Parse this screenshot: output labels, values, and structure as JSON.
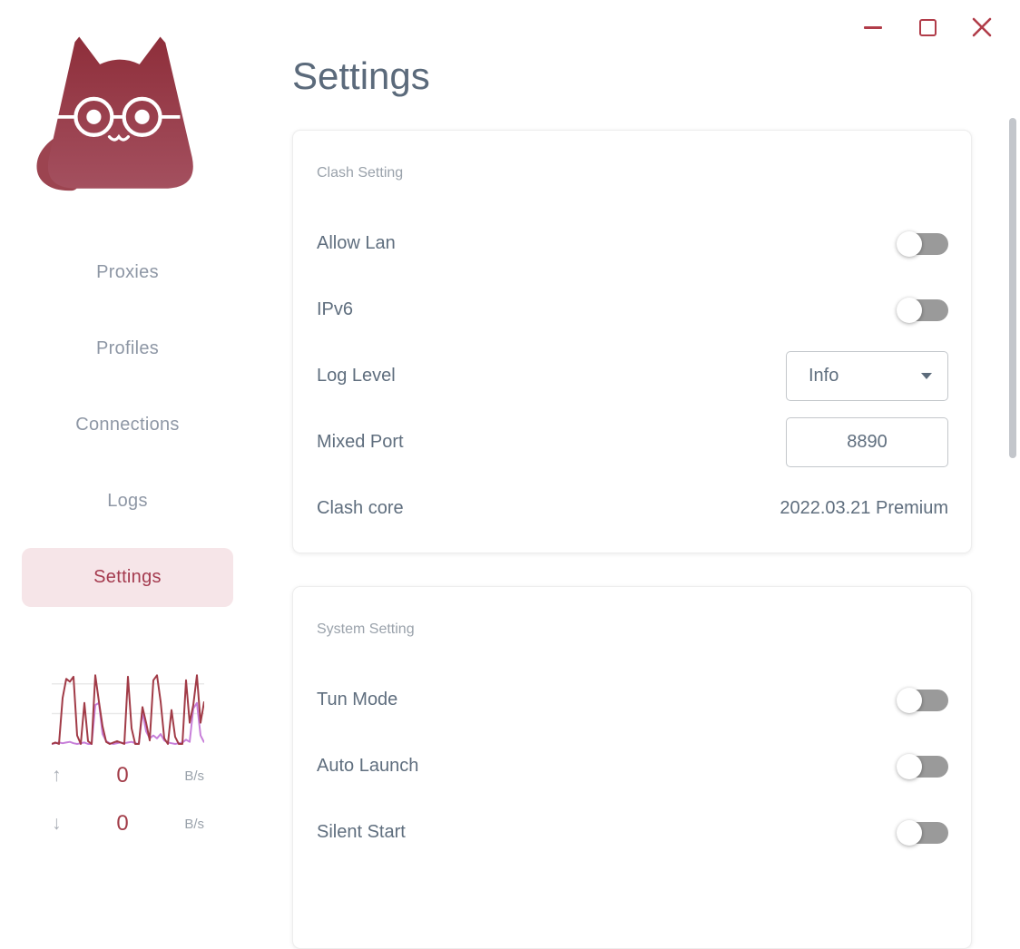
{
  "window": {
    "controls": {
      "minimize": "minimize",
      "maximize": "maximize",
      "close": "close"
    }
  },
  "sidebar": {
    "logo": "cat-with-glasses",
    "nav": [
      {
        "label": "Proxies",
        "active": false
      },
      {
        "label": "Profiles",
        "active": false
      },
      {
        "label": "Connections",
        "active": false
      },
      {
        "label": "Logs",
        "active": false
      },
      {
        "label": "Settings",
        "active": true
      }
    ],
    "traffic": {
      "upload": {
        "icon": "arrow-up-icon",
        "value": "0",
        "unit": "B/s"
      },
      "download": {
        "icon": "arrow-down-icon",
        "value": "0",
        "unit": "B/s"
      },
      "chart": {
        "type": "line",
        "ylim": [
          0,
          100
        ],
        "gridlines": [
          43,
          85
        ],
        "grid_color": "#e9e9e9",
        "series": [
          {
            "name": "upload",
            "color": "#a13b47",
            "values": [
              0,
              2,
              0,
              65,
              92,
              88,
              95,
              12,
              0,
              58,
              4,
              0,
              97,
              60,
              25,
              3,
              0,
              2,
              4,
              2,
              0,
              95,
              22,
              0,
              0,
              52,
              30,
              5,
              90,
              97,
              60,
              8,
              0,
              48,
              10,
              0,
              0,
              90,
              30,
              55,
              97,
              30,
              60
            ]
          },
          {
            "name": "download",
            "color": "#c77fd9",
            "values": [
              0,
              1,
              2,
              1,
              2,
              3,
              1,
              0,
              1,
              2,
              0,
              0,
              55,
              58,
              14,
              4,
              1,
              0,
              1,
              2,
              1,
              2,
              3,
              1,
              0,
              45,
              18,
              8,
              12,
              8,
              14,
              5,
              2,
              1,
              0,
              1,
              2,
              6,
              3,
              50,
              58,
              12,
              2
            ]
          }
        ]
      }
    }
  },
  "main": {
    "title": "Settings",
    "cards": [
      {
        "section": "Clash Setting",
        "rows": [
          {
            "label": "Allow Lan",
            "type": "toggle",
            "value": "off"
          },
          {
            "label": "IPv6",
            "type": "toggle",
            "value": "off"
          },
          {
            "label": "Log Level",
            "type": "select",
            "value": "Info"
          },
          {
            "label": "Mixed Port",
            "type": "input",
            "value": "8890"
          },
          {
            "label": "Clash core",
            "type": "text",
            "value": "2022.03.21 Premium"
          }
        ]
      },
      {
        "section": "System Setting",
        "rows": [
          {
            "label": "Tun Mode",
            "type": "toggle",
            "value": "off"
          },
          {
            "label": "Auto Launch",
            "type": "toggle",
            "value": "off"
          },
          {
            "label": "Silent Start",
            "type": "toggle",
            "value": "off"
          }
        ]
      }
    ]
  },
  "colors": {
    "accent": "#a13b47",
    "active_nav_bg": "#f6e5e8",
    "active_nav_text": "#a43a4e",
    "text_primary": "#5f6e7e",
    "text_muted": "#9aa2ab",
    "nav_text": "#8e97a5",
    "toggle_track_off": "#9a9a9a",
    "window_controls": "#b13c49"
  }
}
